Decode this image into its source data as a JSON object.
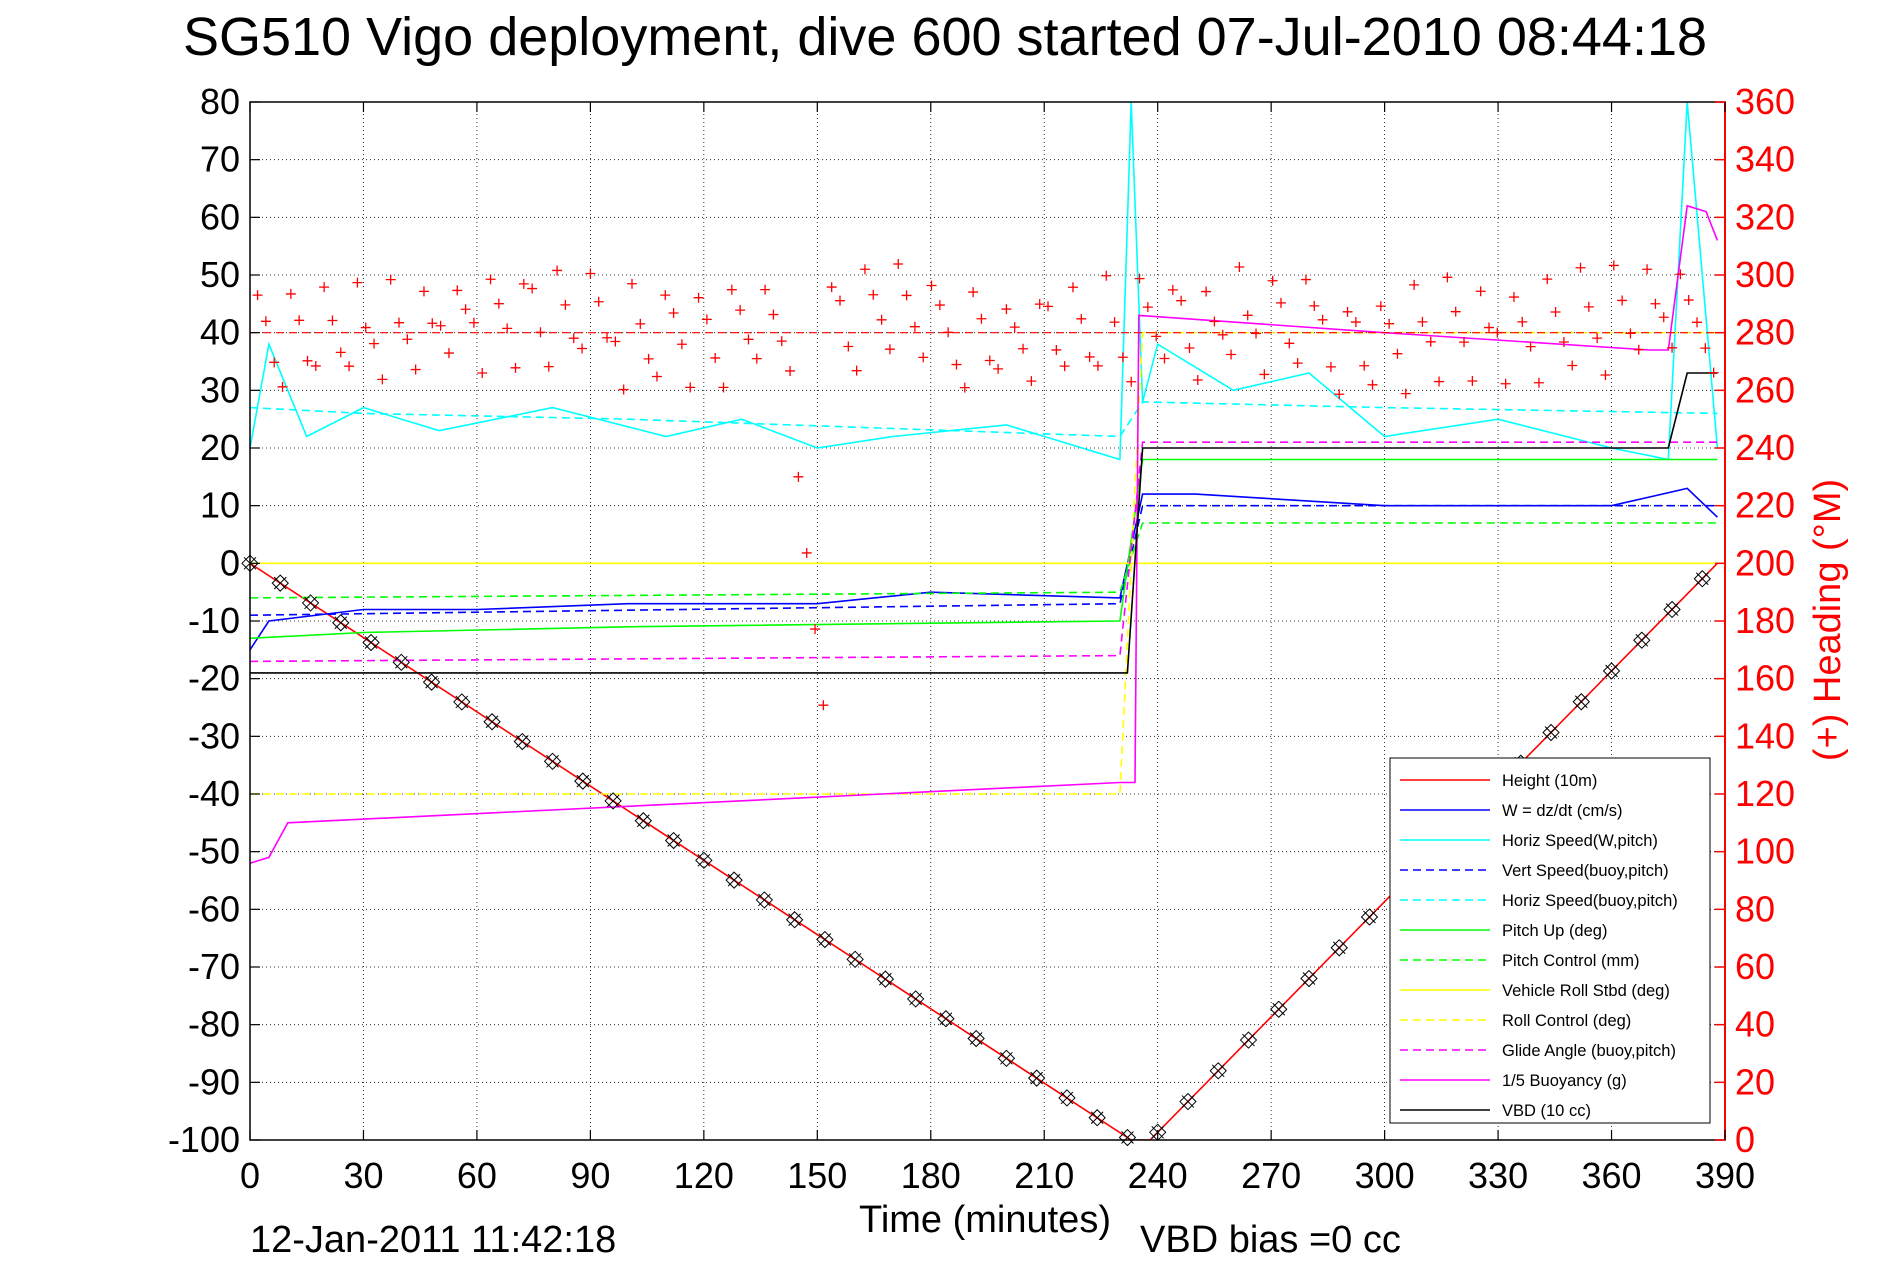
{
  "chart_data": {
    "type": "line",
    "title": "SG510 Vigo deployment, dive 600 started 07-Jul-2010 08:44:18",
    "xlabel": "Time (minutes)",
    "ylabel_right": "(+) Heading (°M)",
    "footer_left": "12-Jan-2011 11:42:18",
    "footer_right": "VBD bias =0 cc",
    "xlim": [
      0,
      390
    ],
    "ylim_left": [
      -100,
      80
    ],
    "ylim_right": [
      0,
      360
    ],
    "x_ticks": [
      "0",
      "30",
      "60",
      "90",
      "120",
      "150",
      "180",
      "210",
      "240",
      "270",
      "300",
      "330",
      "360",
      "390"
    ],
    "y_ticks_left": [
      "80",
      "70",
      "60",
      "50",
      "40",
      "30",
      "20",
      "10",
      "0",
      "-10",
      "-20",
      "-30",
      "-40",
      "-50",
      "-60",
      "-70",
      "-80",
      "-90",
      "-100"
    ],
    "y_ticks_right": [
      "360",
      "340",
      "320",
      "300",
      "280",
      "260",
      "240",
      "220",
      "200",
      "180",
      "160",
      "140",
      "120",
      "100",
      "80",
      "60",
      "40",
      "20",
      "0"
    ],
    "grid": true,
    "legend_position": "bottom-right",
    "series": [
      {
        "name": "Height (10m)",
        "color": "#ff0000",
        "style": "solid",
        "x": [
          0,
          233,
          238,
          388
        ],
        "y": [
          0,
          -100,
          -100,
          0
        ]
      },
      {
        "name": "W = dz/dt (cm/s)",
        "color": "#0000ff",
        "style": "solid",
        "x": [
          0,
          5,
          30,
          60,
          100,
          150,
          180,
          230,
          236,
          250,
          300,
          360,
          380,
          388
        ],
        "y": [
          -15,
          -10,
          -8,
          -8,
          -7,
          -7,
          -5,
          -6,
          12,
          12,
          10,
          10,
          13,
          8
        ]
      },
      {
        "name": "Horiz Speed(W,pitch)",
        "color": "#00ffff",
        "style": "solid",
        "x": [
          0,
          5,
          15,
          30,
          50,
          80,
          110,
          130,
          150,
          170,
          200,
          230,
          233,
          236,
          240,
          260,
          280,
          300,
          330,
          360,
          375,
          380,
          388
        ],
        "y": [
          20,
          38,
          22,
          27,
          23,
          27,
          22,
          25,
          20,
          22,
          24,
          18,
          80,
          28,
          38,
          30,
          33,
          22,
          25,
          20,
          18,
          80,
          20
        ]
      },
      {
        "name": "Vert Speed(buoy,pitch)",
        "color": "#0000ff",
        "style": "dashed",
        "x": [
          0,
          230,
          236,
          388
        ],
        "y": [
          -9,
          -7,
          10,
          10
        ]
      },
      {
        "name": "Horiz Speed(buoy,pitch)",
        "color": "#00ffff",
        "style": "dashed",
        "x": [
          0,
          30,
          100,
          230,
          236,
          300,
          388
        ],
        "y": [
          27,
          26,
          25,
          22,
          28,
          27,
          26
        ]
      },
      {
        "name": "Pitch Up (deg)",
        "color": "#00ff00",
        "style": "solid",
        "x": [
          0,
          30,
          100,
          230,
          236,
          388
        ],
        "y": [
          -13,
          -12,
          -11,
          -10,
          18,
          18
        ]
      },
      {
        "name": "Pitch Control (mm)",
        "color": "#00ff00",
        "style": "dashed",
        "x": [
          0,
          230,
          236,
          388
        ],
        "y": [
          -6,
          -5,
          7,
          7
        ]
      },
      {
        "name": "Vehicle Roll Stbd (deg)",
        "color": "#ffff00",
        "style": "solid",
        "x": [
          0,
          230,
          236,
          388
        ],
        "y": [
          0,
          0,
          0,
          0
        ]
      },
      {
        "name": "Roll Control (deg)",
        "color": "#ffff00",
        "style": "dashed",
        "x": [
          0,
          230,
          236,
          388
        ],
        "y": [
          -40,
          -40,
          40,
          40
        ]
      },
      {
        "name": "Glide Angle (buoy,pitch)",
        "color": "#ff00ff",
        "style": "dashed",
        "x": [
          0,
          230,
          236,
          388
        ],
        "y": [
          -17,
          -16,
          21,
          21
        ]
      },
      {
        "name": "1/5 Buoyancy (g)",
        "color": "#ff00ff",
        "style": "solid",
        "x": [
          0,
          5,
          10,
          230,
          234,
          235,
          300,
          370,
          375,
          380,
          385,
          388
        ],
        "y": [
          -52,
          -51,
          -45,
          -38,
          -38,
          43,
          40,
          37,
          37,
          62,
          61,
          56
        ]
      },
      {
        "name": "VBD (10 cc)",
        "color": "#000000",
        "style": "solid",
        "x": [
          0,
          232,
          236,
          375,
          380,
          388
        ],
        "y": [
          -19,
          -19,
          20,
          20,
          33,
          33
        ]
      }
    ],
    "heading_series": {
      "name": "(+) Heading",
      "color": "#ff0000",
      "marker": "+",
      "mean_heading": 280
    }
  }
}
